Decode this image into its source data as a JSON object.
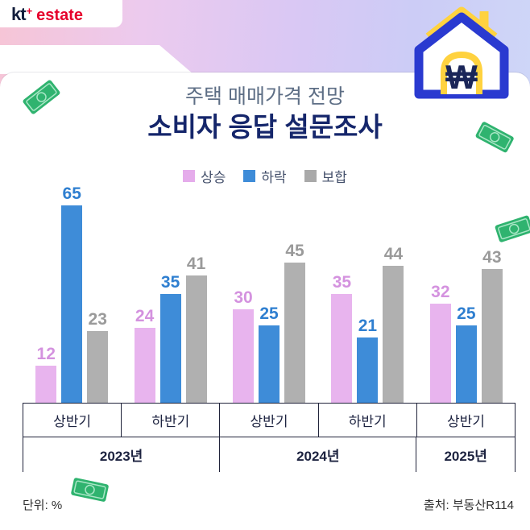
{
  "brand": {
    "kt": "kt",
    "estate": "estate"
  },
  "header": {
    "title_line1": "주택 매매가격 전망",
    "title_line2": "소비자 응답 설문조사"
  },
  "legend": [
    {
      "label": "상승",
      "color": "#e5aceb"
    },
    {
      "label": "하락",
      "color": "#3e8cd8"
    },
    {
      "label": "보합",
      "color": "#a9a9a9"
    }
  ],
  "chart_data": {
    "type": "bar",
    "title": "주택 매매가격 전망 소비자 응답 설문조사",
    "categories": [
      "상반기",
      "하반기",
      "상반기",
      "하반기",
      "상반기"
    ],
    "year_groups": [
      {
        "label": "2023년",
        "span": 2
      },
      {
        "label": "2024년",
        "span": 2
      },
      {
        "label": "2025년",
        "span": 1
      }
    ],
    "series": [
      {
        "name": "상승",
        "color": "#e8b4ee",
        "label_color": "#d492df",
        "values": [
          12,
          24,
          30,
          35,
          32
        ]
      },
      {
        "name": "하락",
        "color": "#3e8cd8",
        "label_color": "#2f7fd0",
        "values": [
          65,
          35,
          25,
          21,
          25
        ]
      },
      {
        "name": "보합",
        "color": "#b0b0b0",
        "label_color": "#9a9a9a",
        "values": [
          23,
          41,
          45,
          44,
          43
        ]
      }
    ],
    "ylim": [
      0,
      70
    ],
    "unit": "%",
    "legend_position": "top",
    "grid": false
  },
  "footer": {
    "unit_label": "단위: %",
    "source_label": "출처: 부동산R114"
  },
  "accents": {
    "navy": "#15266b",
    "kt_red": "#e6002c",
    "house_blue": "#2a3ad0",
    "house_yellow": "#ffd23f",
    "bill_green": "#2fb36f"
  }
}
